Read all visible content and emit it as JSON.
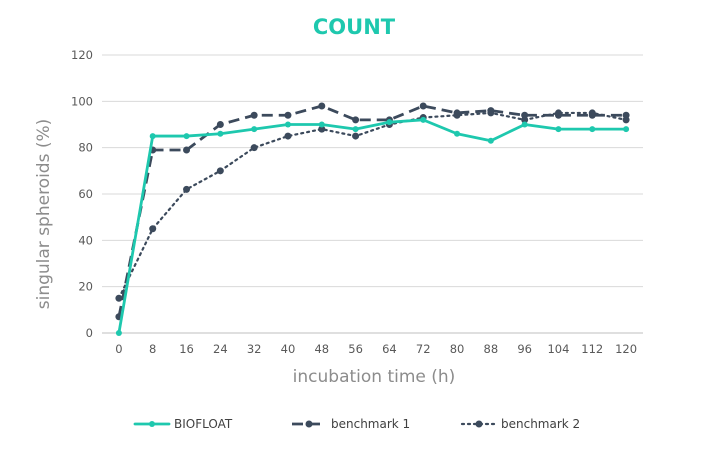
{
  "chart_data": {
    "type": "line",
    "title": "COUNT",
    "xlabel": "incubation time (h)",
    "ylabel": "singular spheroids (%)",
    "categories": [
      "0",
      "8",
      "16",
      "24",
      "32",
      "40",
      "48",
      "56",
      "64",
      "72",
      "80",
      "88",
      "96",
      "104",
      "112",
      "120"
    ],
    "ylim": [
      0,
      120
    ],
    "yticks": [
      0,
      20,
      40,
      60,
      80,
      100,
      120
    ],
    "grid": true,
    "legend_position": "bottom",
    "series": [
      {
        "name": "BIOFLOAT",
        "style": "solid",
        "color": "#1ec8ae",
        "values": [
          0,
          85,
          85,
          86,
          88,
          90,
          90,
          88,
          91,
          92,
          86,
          83,
          90,
          88,
          88,
          88
        ]
      },
      {
        "name": "benchmark 1",
        "style": "dashed",
        "color": "#3c4a5c",
        "values": [
          7,
          79,
          79,
          90,
          94,
          94,
          98,
          92,
          92,
          98,
          95,
          96,
          94,
          94,
          94,
          94
        ]
      },
      {
        "name": "benchmark 2",
        "style": "dotted",
        "color": "#3c4a5c",
        "values": [
          15,
          45,
          62,
          70,
          80,
          85,
          88,
          85,
          90,
          93,
          94,
          95,
          92,
          95,
          95,
          92
        ]
      }
    ]
  }
}
